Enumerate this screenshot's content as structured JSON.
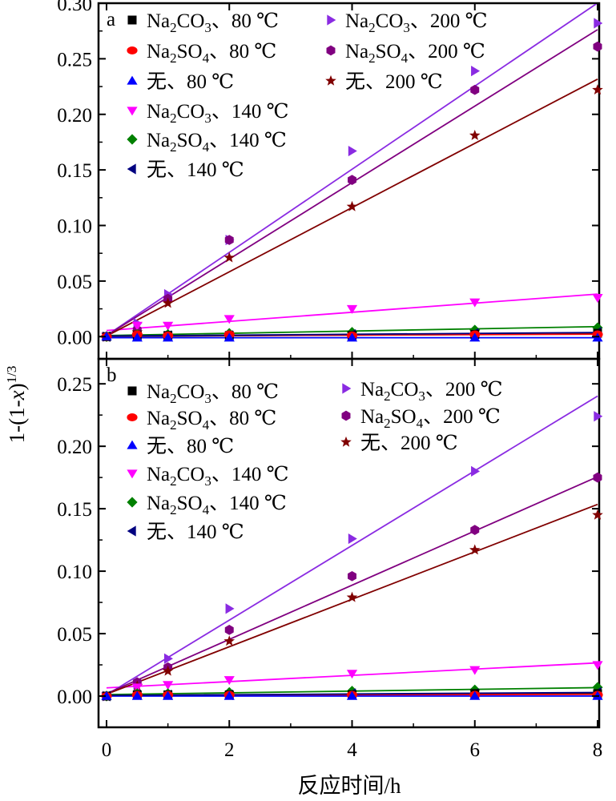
{
  "chart_data": {
    "type": "scatter",
    "x_axis": {
      "label": "反应时间/h",
      "range": [
        0,
        8
      ],
      "ticks": [
        "0",
        "2",
        "4",
        "6",
        "8"
      ]
    },
    "y_axis_label": "1-(1-x)^{1/3}",
    "panels": [
      {
        "label": "a",
        "ylim": [
          -0.02,
          0.3
        ],
        "y_ticks": [
          "0.00",
          "0.05",
          "0.10",
          "0.15",
          "0.20",
          "0.25",
          "0.30"
        ],
        "x": [
          0,
          0.5,
          1,
          2,
          4,
          6,
          8
        ],
        "series": [
          {
            "name": "Na2CO3、80 ℃",
            "marker": "square",
            "color": "#000000",
            "values": [
              0,
              0.001,
              0.001,
              0.001,
              0.001,
              0.002,
              0.003
            ],
            "fit": [
              0.0002,
              0.0003
            ]
          },
          {
            "name": "Na2SO4、80 ℃",
            "marker": "circle",
            "color": "#ff0000",
            "values": [
              0,
              0.002,
              0.001,
              0.002,
              0.001,
              0.002,
              0.002
            ],
            "fit": [
              0.0006,
              0.0002
            ]
          },
          {
            "name": "无、80 ℃",
            "marker": "triangle-up",
            "color": "#0000ff",
            "values": [
              0,
              -0.001,
              -0.001,
              -0.001,
              -0.001,
              -0.001,
              -0.001
            ],
            "fit": [
              -0.001,
              0
            ]
          },
          {
            "name": "Na2CO3、140 ℃",
            "marker": "triangle-down",
            "color": "#ff00ff",
            "values": [
              0,
              0.01,
              0.01,
              0.016,
              0.025,
              0.031,
              0.035
            ],
            "fit": [
              0.0055,
              0.0041
            ]
          },
          {
            "name": "Na2SO4、140 ℃",
            "marker": "diamond",
            "color": "#008000",
            "values": [
              0,
              0.002,
              0.002,
              0.003,
              0.004,
              0.006,
              0.008
            ],
            "fit": [
              0.001,
              0.001
            ]
          },
          {
            "name": "无、140 ℃",
            "marker": "triangle-left",
            "color": "#000080",
            "values": [
              0,
              0.001,
              0.001,
              0.001,
              0.002,
              0.003,
              0.004
            ],
            "fit": [
              0.0005,
              0.0004
            ]
          },
          {
            "name": "Na2CO3、200 ℃",
            "marker": "triangle-right",
            "color": "#8a2be2",
            "values": [
              0,
              0.012,
              0.038,
              0.087,
              0.167,
              0.239,
              0.282
            ],
            "fit": [
              0.001,
              0.0374
            ]
          },
          {
            "name": "Na2SO4、200 ℃",
            "marker": "hexagon",
            "color": "#800080",
            "values": [
              0,
              0.006,
              0.034,
              0.087,
              0.141,
              0.222,
              0.261
            ],
            "fit": [
              0.001,
              0.0344
            ]
          },
          {
            "name": "无、200 ℃",
            "marker": "star",
            "color": "#800000",
            "values": [
              0,
              0.004,
              0.03,
              0.071,
              0.117,
              0.181,
              0.222
            ],
            "fit": [
              0.0005,
              0.0289
            ]
          }
        ]
      },
      {
        "label": "b",
        "ylim": [
          -0.025,
          0.27
        ],
        "y_ticks": [
          "0.00",
          "0.05",
          "0.10",
          "0.15",
          "0.20",
          "0.25"
        ],
        "x": [
          0,
          0.5,
          1,
          2,
          4,
          6,
          8
        ],
        "series": [
          {
            "name": "Na2CO3、80 ℃",
            "marker": "square",
            "color": "#000000",
            "values": [
              0,
              0.001,
              0.001,
              0.001,
              0.001,
              0.002,
              0.002
            ],
            "fit": [
              0.0004,
              0.0002
            ]
          },
          {
            "name": "Na2SO4、80 ℃",
            "marker": "circle",
            "color": "#ff0000",
            "values": [
              0,
              0.001,
              0.001,
              0.001,
              0.001,
              0.001,
              0.001
            ],
            "fit": [
              0.0006,
              0.0001
            ]
          },
          {
            "name": "无、80 ℃",
            "marker": "triangle-up",
            "color": "#0000ff",
            "values": [
              0,
              0,
              0,
              0,
              0,
              0,
              0
            ],
            "fit": [
              0,
              0
            ]
          },
          {
            "name": "Na2CO3、140 ℃",
            "marker": "triangle-down",
            "color": "#ff00ff",
            "values": [
              0,
              0.007,
              0.009,
              0.013,
              0.018,
              0.021,
              0.025
            ],
            "fit": [
              0.0066,
              0.0025
            ]
          },
          {
            "name": "Na2SO4、140 ℃",
            "marker": "diamond",
            "color": "#008000",
            "values": [
              0,
              0.002,
              0.002,
              0.003,
              0.004,
              0.005,
              0.007
            ],
            "fit": [
              0.0012,
              0.0007
            ]
          },
          {
            "name": "无、140 ℃",
            "marker": "triangle-left",
            "color": "#000080",
            "values": [
              0,
              0.001,
              0.001,
              0.001,
              0.002,
              0.002,
              0.003
            ],
            "fit": [
              0.0005,
              0.0003
            ]
          },
          {
            "name": "Na2CO3、200 ℃",
            "marker": "triangle-right",
            "color": "#8a2be2",
            "values": [
              0,
              0.009,
              0.03,
              0.07,
              0.126,
              0.18,
              0.224
            ],
            "fit": [
              0.001,
              0.0299
            ]
          },
          {
            "name": "Na2SO4、200 ℃",
            "marker": "hexagon",
            "color": "#800080",
            "values": [
              0,
              0.011,
              0.023,
              0.053,
              0.096,
              0.133,
              0.175
            ],
            "fit": [
              0.002,
              0.0217
            ]
          },
          {
            "name": "无、200 ℃",
            "marker": "star",
            "color": "#800000",
            "values": [
              0,
              0.008,
              0.02,
              0.044,
              0.079,
              0.117,
              0.145
            ],
            "fit": [
              0.0015,
              0.019
            ]
          }
        ]
      }
    ]
  }
}
